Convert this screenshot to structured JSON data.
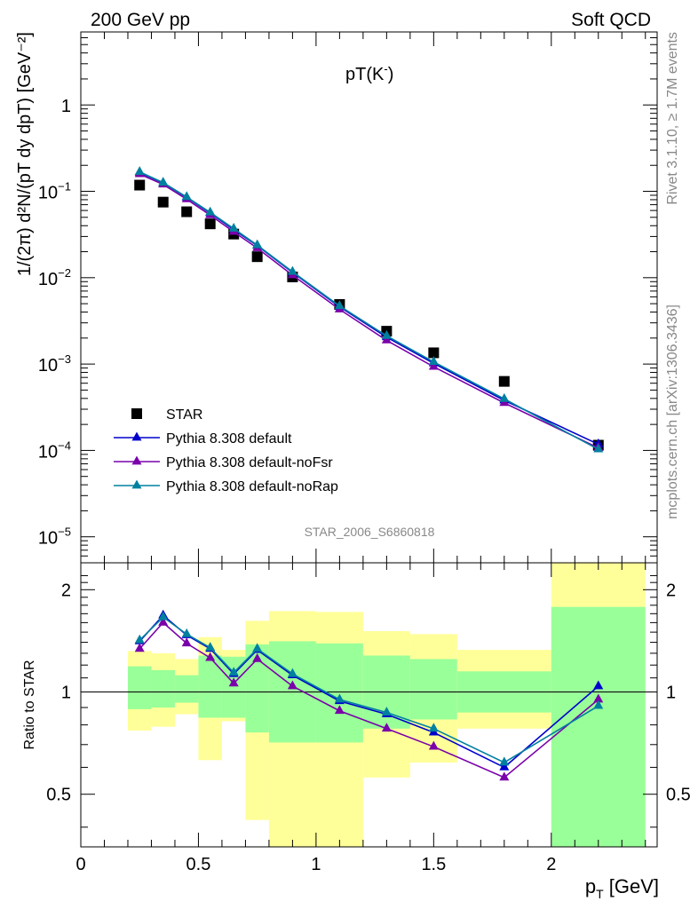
{
  "header": {
    "left": "200 GeV pp",
    "right": "Soft QCD",
    "side_rivet": "Rivet 3.1.10, ≥ 1.7M events",
    "side_mcplots": "mcplots.cern.ch [arXiv:1306.3436]",
    "analysis_id": "STAR_2006_S6860818"
  },
  "chart_data": [
    {
      "type": "scatter",
      "panel": "main",
      "title_base": "pT(K",
      "title_sup": "-",
      "title_end": ")",
      "ylabel": "1/(2π) d²N/(pT dy dpT) [GeV⁻²]",
      "yscale": "log",
      "ylim": [
        5e-06,
        7
      ],
      "xlim": [
        0,
        2.45
      ],
      "y_ticks": [
        {
          "value": 1,
          "base": "1",
          "exp": ""
        },
        {
          "value": 0.1,
          "base": "10",
          "exp": "−1"
        },
        {
          "value": 0.01,
          "base": "10",
          "exp": "−2"
        },
        {
          "value": 0.001,
          "base": "10",
          "exp": "−3"
        },
        {
          "value": 0.0001,
          "base": "10",
          "exp": "−4"
        },
        {
          "value": 1e-05,
          "base": "10",
          "exp": "−5"
        }
      ],
      "legend_position": "bottom-left",
      "series": [
        {
          "name": "STAR",
          "color": "#000000",
          "marker": "square",
          "x": [
            0.25,
            0.35,
            0.45,
            0.55,
            0.65,
            0.75,
            0.9,
            1.1,
            1.3,
            1.5,
            1.8,
            2.2
          ],
          "y": [
            0.118,
            0.075,
            0.058,
            0.042,
            0.032,
            0.0175,
            0.0102,
            0.0049,
            0.0024,
            0.00135,
            0.00063,
            0.000115
          ]
        },
        {
          "name": "Pythia 8.308 default",
          "color": "#0000cc",
          "marker": "triangle",
          "x": [
            0.25,
            0.35,
            0.45,
            0.55,
            0.65,
            0.75,
            0.9,
            1.1,
            1.3,
            1.5,
            1.8,
            2.2
          ],
          "y": [
            0.165,
            0.125,
            0.085,
            0.056,
            0.036,
            0.0235,
            0.0115,
            0.0046,
            0.00205,
            0.00102,
            0.00038,
            0.000118
          ]
        },
        {
          "name": "Pythia 8.308 default-noFsr",
          "color": "#7a00aa",
          "marker": "triangle",
          "x": [
            0.25,
            0.35,
            0.45,
            0.55,
            0.65,
            0.75,
            0.9,
            1.1,
            1.3,
            1.5,
            1.8,
            2.2
          ],
          "y": [
            0.158,
            0.12,
            0.081,
            0.053,
            0.034,
            0.022,
            0.0107,
            0.0043,
            0.00188,
            0.00093,
            0.000355,
            0.000107
          ]
        },
        {
          "name": "Pythia 8.308 default-noRap",
          "color": "#0080a0",
          "marker": "triangle",
          "x": [
            0.25,
            0.35,
            0.45,
            0.55,
            0.65,
            0.75,
            0.9,
            1.1,
            1.3,
            1.5,
            1.8,
            2.2
          ],
          "y": [
            0.168,
            0.126,
            0.086,
            0.057,
            0.037,
            0.0238,
            0.0117,
            0.0047,
            0.00212,
            0.00106,
            0.000395,
            0.000103
          ]
        }
      ]
    },
    {
      "type": "line",
      "panel": "ratio",
      "ylabel": "Ratio to STAR",
      "xlabel_base": "p",
      "xlabel_sub": "T",
      "xlabel_unit": "[GeV]",
      "yscale": "log",
      "ylim": [
        0.35,
        2.4
      ],
      "xlim": [
        0,
        2.45
      ],
      "x_ticks": [
        "0",
        "0.5",
        "1",
        "1.5",
        "2"
      ],
      "y_ticks": [
        {
          "value": 0.5,
          "label": "0.5"
        },
        {
          "value": 1,
          "label": "1"
        },
        {
          "value": 2,
          "label": "2"
        }
      ],
      "reference_line": 1,
      "bands": [
        {
          "x0": 0.2,
          "x1": 0.3,
          "green": [
            0.89,
            1.19
          ],
          "yellow": [
            0.77,
            1.32
          ]
        },
        {
          "x0": 0.3,
          "x1": 0.4,
          "green": [
            0.9,
            1.16
          ],
          "yellow": [
            0.79,
            1.3
          ]
        },
        {
          "x0": 0.4,
          "x1": 0.5,
          "green": [
            0.93,
            1.12
          ],
          "yellow": [
            0.86,
            1.25
          ]
        },
        {
          "x0": 0.5,
          "x1": 0.6,
          "green": [
            0.84,
            1.28
          ],
          "yellow": [
            0.63,
            1.45
          ]
        },
        {
          "x0": 0.6,
          "x1": 0.7,
          "green": [
            0.84,
            1.27
          ],
          "yellow": [
            0.82,
            1.33
          ]
        },
        {
          "x0": 0.7,
          "x1": 0.8,
          "green": [
            0.76,
            1.38
          ],
          "yellow": [
            0.42,
            1.62
          ]
        },
        {
          "x0": 0.8,
          "x1": 1.0,
          "green": [
            0.71,
            1.41
          ],
          "yellow": [
            0.35,
            1.73
          ]
        },
        {
          "x0": 1.0,
          "x1": 1.2,
          "green": [
            0.71,
            1.39
          ],
          "yellow": [
            0.35,
            1.72
          ]
        },
        {
          "x0": 1.2,
          "x1": 1.4,
          "green": [
            0.78,
            1.28
          ],
          "yellow": [
            0.56,
            1.51
          ]
        },
        {
          "x0": 1.4,
          "x1": 1.6,
          "green": [
            0.83,
            1.25
          ],
          "yellow": [
            0.62,
            1.48
          ]
        },
        {
          "x0": 1.6,
          "x1": 2.0,
          "green": [
            0.87,
            1.15
          ],
          "yellow": [
            0.78,
            1.33
          ]
        },
        {
          "x0": 2.0,
          "x1": 2.4,
          "green": [
            0.35,
            1.78
          ],
          "yellow": [
            0.35,
            2.4
          ]
        }
      ],
      "series": [
        {
          "name": "Pythia 8.308 default",
          "color": "#0000cc",
          "x": [
            0.25,
            0.35,
            0.45,
            0.55,
            0.65,
            0.75,
            0.9,
            1.1,
            1.3,
            1.5,
            1.8,
            2.2
          ],
          "y": [
            1.41,
            1.68,
            1.47,
            1.34,
            1.13,
            1.33,
            1.12,
            0.94,
            0.86,
            0.76,
            0.6,
            1.04
          ]
        },
        {
          "name": "Pythia 8.308 default-noFsr",
          "color": "#7a00aa",
          "x": [
            0.25,
            0.35,
            0.45,
            0.55,
            0.65,
            0.75,
            0.9,
            1.1,
            1.3,
            1.5,
            1.8,
            2.2
          ],
          "y": [
            1.34,
            1.6,
            1.39,
            1.26,
            1.06,
            1.25,
            1.04,
            0.88,
            0.78,
            0.69,
            0.56,
            0.95
          ]
        },
        {
          "name": "Pythia 8.308 default-noRap",
          "color": "#0080a0",
          "x": [
            0.25,
            0.35,
            0.45,
            0.55,
            0.65,
            0.75,
            0.9,
            1.1,
            1.3,
            1.5,
            1.8,
            2.2
          ],
          "y": [
            1.42,
            1.66,
            1.48,
            1.35,
            1.14,
            1.34,
            1.13,
            0.95,
            0.87,
            0.78,
            0.62,
            0.91
          ]
        }
      ]
    }
  ]
}
